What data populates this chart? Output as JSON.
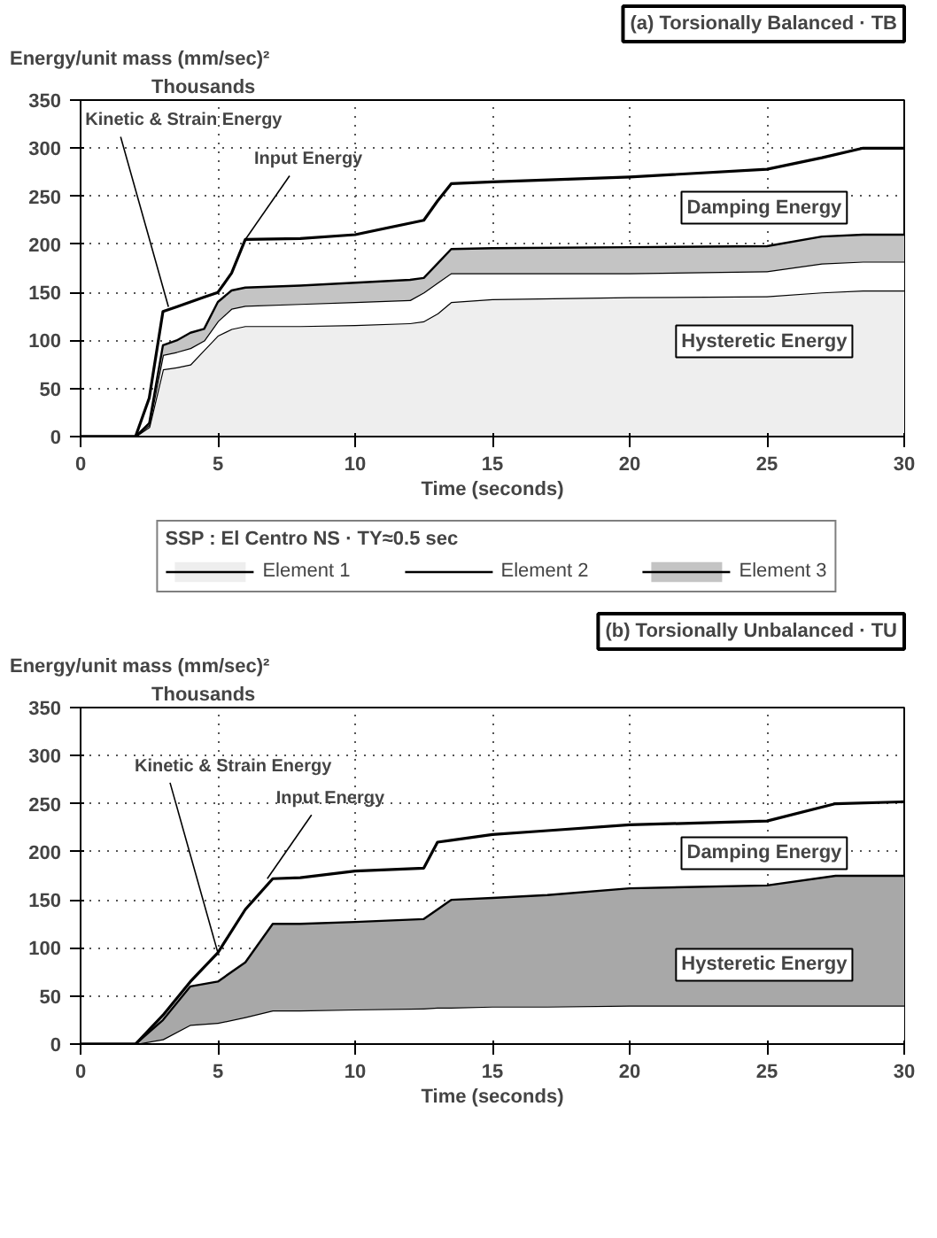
{
  "chart_data": [
    {
      "type": "area",
      "stacked": true,
      "title": "(a) Torsionally Balanced · TB",
      "ylabel": "Energy/unit mass (mm/sec)²",
      "subtitle": "Thousands",
      "xlabel": "Time (seconds)",
      "legend_title": "SSP : El Centro NS · TY≈0.5 sec",
      "legend": "bottom",
      "grid": true,
      "x": [
        0,
        2,
        2.5,
        3,
        3.5,
        4,
        4.5,
        5,
        5.5,
        6,
        8,
        10,
        12,
        12.5,
        13,
        13.5,
        15,
        20,
        25,
        27,
        28.5,
        30
      ],
      "series": [
        {
          "name": "Element 1",
          "color": "#eeeeee",
          "values": [
            0,
            0,
            10,
            70,
            72,
            75,
            90,
            105,
            112,
            115,
            115,
            116,
            118,
            120,
            128,
            140,
            143,
            145,
            146,
            150,
            152,
            152
          ]
        },
        {
          "name": "Element 2",
          "color": "#ffffff",
          "values": [
            0,
            0,
            2,
            15,
            16,
            17,
            10,
            15,
            21,
            21,
            23,
            24,
            24,
            30,
            32,
            30,
            27,
            25,
            26,
            30,
            30,
            30
          ]
        },
        {
          "name": "Element 3",
          "color": "#c4c4c4",
          "values": [
            0,
            0,
            2,
            10,
            12,
            16,
            12,
            20,
            19,
            19,
            19,
            20,
            21,
            15,
            20,
            25,
            26,
            27,
            26,
            28,
            28,
            28
          ]
        },
        {
          "type": "line",
          "color": "#000000",
          "values": [
            0,
            0,
            40,
            130,
            135,
            140,
            145,
            150,
            170,
            205,
            206,
            210,
            222,
            225,
            245,
            263,
            265,
            270,
            278,
            290,
            300,
            300
          ]
        }
      ],
      "annotations": [
        {
          "text": "Input Energy",
          "x": 6,
          "y": 205
        },
        {
          "text": "Kinetic & Strain Energy",
          "x": 3.2,
          "y": 135
        },
        "Damping Energy",
        "Hysteretic Energy"
      ],
      "xlim": [
        0,
        30
      ],
      "ylim": [
        0,
        350
      ],
      "xticks": [
        0,
        5,
        10,
        15,
        20,
        25,
        30
      ],
      "yticks": [
        0,
        50,
        100,
        150,
        200,
        250,
        300,
        350
      ]
    },
    {
      "type": "area",
      "stacked": true,
      "title": "(b) Torsionally Unbalanced · TU",
      "ylabel": "Energy/unit mass (mm/sec)²",
      "subtitle": "Thousands",
      "xlabel": "Time (seconds)",
      "grid": true,
      "x": [
        0,
        2,
        3,
        4,
        5,
        6,
        7,
        8,
        10,
        12.5,
        13,
        13.5,
        15,
        17,
        20,
        25,
        27.5,
        30
      ],
      "series": [
        {
          "color": "#ffffff",
          "values": [
            0,
            0,
            5,
            20,
            22,
            28,
            35,
            35,
            36,
            37,
            38,
            38,
            39,
            39,
            40,
            40,
            40,
            40
          ]
        },
        {
          "color": "#a8a8a8",
          "values": [
            0,
            0,
            20,
            40,
            43,
            57,
            90,
            90,
            91,
            93,
            102,
            112,
            113,
            116,
            122,
            125,
            135,
            135
          ]
        },
        {
          "type": "line",
          "color": "#000000",
          "values": [
            0,
            0,
            30,
            65,
            95,
            140,
            172,
            173,
            180,
            183,
            210,
            212,
            218,
            222,
            228,
            232,
            250,
            252
          ]
        }
      ],
      "annotations": [
        {
          "text": "Input Energy",
          "x": 6.8,
          "y": 172
        },
        {
          "text": "Kinetic & Strain Energy",
          "x": 5,
          "y": 95
        },
        "Damping Energy",
        "Hysteretic Energy"
      ],
      "xlim": [
        0,
        30
      ],
      "ylim": [
        0,
        350
      ],
      "xticks": [
        0,
        5,
        10,
        15,
        20,
        25,
        30
      ],
      "yticks": [
        0,
        50,
        100,
        150,
        200,
        250,
        300,
        350
      ]
    }
  ]
}
